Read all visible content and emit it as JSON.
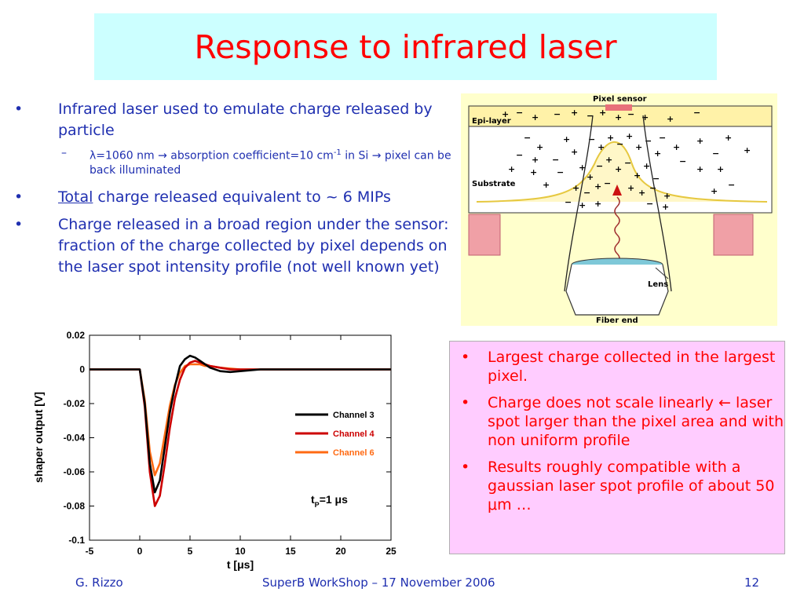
{
  "slide": {
    "title": "Response to infrared laser",
    "bullets": [
      {
        "marker": "•",
        "text": "Infrared laser used to emulate charge released by  particle"
      },
      {
        "marker": "–",
        "lambda": "λ",
        "p1": "=1060 nm ",
        "arrow1": "→",
        "p2": " absorption coefficient=10 cm",
        "sup": "-1",
        "p3": " in Si ",
        "arrow2": "→",
        "p4": " pixel can be back illuminated"
      },
      {
        "marker": "•",
        "underlined": "Total",
        "text": " charge released equivalent to ~ 6 MIPs"
      },
      {
        "marker": "•",
        "text": "Charge released in a broad region under the sensor: fraction of the charge collected by pixel depends on the laser spot intensity profile (not well known yet)"
      }
    ],
    "right_box": {
      "bg": "#ffccff",
      "bullets": [
        {
          "marker": "•",
          "text": "Largest charge collected in the largest pixel."
        },
        {
          "marker": "•",
          "text": "Charge does not scale linearly ",
          "arrow": "←",
          "text2": " laser spot larger than the pixel area and with non uniform profile"
        },
        {
          "marker": "•",
          "text": "Results roughly compatible with a gaussian laser spot profile of about 50 ",
          "mu": "μ",
          "text2": "m …"
        }
      ]
    },
    "diagram": {
      "labels": {
        "pixel_sensor": "Pixel sensor",
        "epi_layer": "Epi-layer",
        "substrate": "Substrate",
        "lens": "Lens",
        "fiber_end": "Fiber end"
      }
    },
    "footer": {
      "author": "G. Rizzo",
      "event": "SuperB WorkShop – 17 November 2006",
      "page": "12"
    }
  },
  "chart_data": {
    "type": "line",
    "xlabel": "t  [μs]",
    "ylabel": "shaper output  [V]",
    "xlim": [
      -5,
      25
    ],
    "ylim": [
      -0.1,
      0.02
    ],
    "xticks": [
      "-5",
      "0",
      "5",
      "10",
      "15",
      "20",
      "25"
    ],
    "yticks": [
      "0.02",
      "0",
      "-0.02",
      "-0.04",
      "-0.06",
      "-0.08",
      "-0.1"
    ],
    "annotation": {
      "t": "t",
      "sub": "P",
      "rest": "=1 μs"
    },
    "legend_position": "right-center",
    "series": [
      {
        "name": "Channel 3",
        "color": "#000000",
        "x": [
          -5,
          -2,
          0,
          0.5,
          1,
          1.5,
          2,
          2.5,
          3,
          3.5,
          4,
          4.5,
          5,
          5.5,
          6,
          6.5,
          7,
          8,
          9,
          10,
          12,
          15,
          20,
          25
        ],
        "y": [
          0,
          0,
          0,
          -0.02,
          -0.055,
          -0.072,
          -0.065,
          -0.045,
          -0.025,
          -0.01,
          0.002,
          0.006,
          0.008,
          0.007,
          0.005,
          0.003,
          0.001,
          -0.001,
          -0.0015,
          -0.001,
          0,
          0,
          0,
          0
        ]
      },
      {
        "name": "Channel 4",
        "color": "#cc0000",
        "x": [
          -5,
          -2,
          0,
          0.5,
          1,
          1.5,
          2,
          2.5,
          3,
          3.5,
          4,
          4.5,
          5,
          5.5,
          6,
          6.5,
          7,
          8,
          9,
          10,
          12,
          15,
          20,
          25
        ],
        "y": [
          0,
          0,
          0,
          -0.022,
          -0.06,
          -0.08,
          -0.074,
          -0.055,
          -0.034,
          -0.017,
          -0.006,
          0.001,
          0.004,
          0.005,
          0.004,
          0.003,
          0.002,
          0.001,
          0,
          0,
          0,
          0,
          0,
          0
        ]
      },
      {
        "name": "Channel 6",
        "color": "#ff6a13",
        "x": [
          -5,
          -2,
          0,
          0.5,
          1,
          1.5,
          2,
          2.5,
          3,
          3.5,
          4,
          4.5,
          5,
          5.5,
          6,
          6.5,
          7,
          8,
          9,
          10,
          12,
          15,
          20,
          25
        ],
        "y": [
          0,
          0,
          0,
          -0.018,
          -0.048,
          -0.062,
          -0.055,
          -0.038,
          -0.021,
          -0.009,
          -0.002,
          0.002,
          0.003,
          0.003,
          0.003,
          0.002,
          0.002,
          0.001,
          0.0005,
          0,
          0,
          0,
          0,
          0
        ]
      }
    ]
  }
}
